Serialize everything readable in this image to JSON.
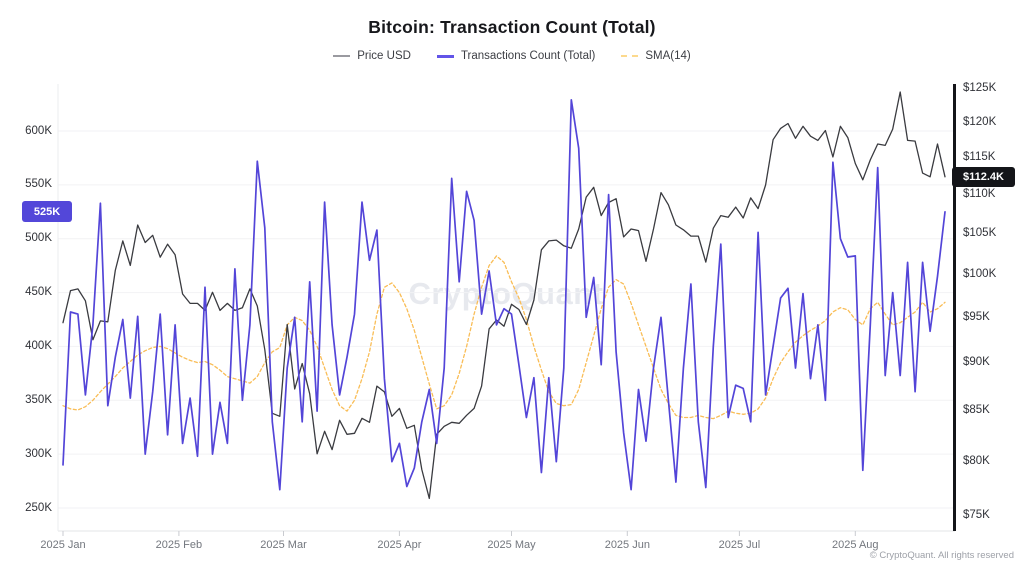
{
  "header": {
    "title": "Bitcoin: Transaction Count (Total)"
  },
  "legend": {
    "items": [
      {
        "label": "Price USD",
        "swatch_color": "#9a9aa0",
        "swatch_style": "solid"
      },
      {
        "label": "Transactions Count (Total)",
        "swatch_color": "#6254e8",
        "swatch_style": "solid"
      },
      {
        "label": "SMA(14)",
        "swatch_color": "#fcd98d",
        "swatch_style": "dashed"
      }
    ]
  },
  "watermark": {
    "text": "CryptoQuant"
  },
  "footer": {
    "copyright": "© CryptoQuant. All rights reserved"
  },
  "chart_data": {
    "type": "line",
    "title": "Bitcoin: Transaction Count (Total)",
    "x_interval_days": 2,
    "axes": {
      "left": {
        "unit": "transactions (K)",
        "scale": "linear",
        "min": 250,
        "max": 600,
        "ticks": [
          {
            "label": "600K",
            "value": 600
          },
          {
            "label": "550K",
            "value": 550
          },
          {
            "label": "500K",
            "value": 500
          },
          {
            "label": "450K",
            "value": 450
          },
          {
            "label": "400K",
            "value": 400
          },
          {
            "label": "350K",
            "value": 350
          },
          {
            "label": "300K",
            "value": 300
          },
          {
            "label": "250K",
            "value": 250
          }
        ],
        "badge": {
          "label": "525K",
          "value": 525,
          "color": "#5347d9"
        }
      },
      "right": {
        "unit": "USD (K)",
        "scale": "log",
        "min": 75,
        "max": 125,
        "ticks": [
          {
            "label": "$125K",
            "value": 125
          },
          {
            "label": "$120K",
            "value": 120
          },
          {
            "label": "$115K",
            "value": 115
          },
          {
            "label": "$110K",
            "value": 110
          },
          {
            "label": "$105K",
            "value": 105
          },
          {
            "label": "$100K",
            "value": 100
          },
          {
            "label": "$95K",
            "value": 95
          },
          {
            "label": "$90K",
            "value": 90
          },
          {
            "label": "$85K",
            "value": 85
          },
          {
            "label": "$80K",
            "value": 80
          },
          {
            "label": "$75K",
            "value": 75
          }
        ],
        "badge": {
          "label": "$112.4K",
          "value": 112.4,
          "color": "#141519"
        }
      },
      "x": {
        "total_days": 236,
        "ticks": [
          {
            "label": "2025 Jan",
            "day": 0
          },
          {
            "label": "2025 Feb",
            "day": 31
          },
          {
            "label": "2025 Mar",
            "day": 59
          },
          {
            "label": "2025 Apr",
            "day": 90
          },
          {
            "label": "2025 May",
            "day": 120
          },
          {
            "label": "2025 Jun",
            "day": 151
          },
          {
            "label": "2025 Jul",
            "day": 181
          },
          {
            "label": "2025 Aug",
            "day": 212
          }
        ]
      }
    },
    "series": [
      {
        "name": "Price USD",
        "axis": "right",
        "color": "#3a3b40",
        "style": "solid",
        "unit": "$K",
        "values": [
          94.4,
          98.1,
          98.3,
          96.9,
          92.5,
          94.6,
          94.5,
          100.5,
          104.1,
          101.1,
          106.1,
          103.9,
          104.8,
          102.1,
          103.7,
          102.4,
          97.7,
          96.6,
          96.6,
          95.8,
          97.9,
          95.8,
          96.6,
          95.8,
          96.1,
          98.3,
          96.3,
          91.4,
          84.7,
          84.4,
          94.2,
          87.2,
          89.9,
          86.7,
          80.7,
          82.9,
          81.1,
          84,
          82.6,
          82.7,
          84.2,
          83.8,
          87.5,
          86.9,
          84.4,
          85.2,
          83.2,
          83.5,
          79.2,
          76.5,
          82.6,
          83.4,
          83.8,
          83.7,
          84.5,
          85.2,
          87.5,
          93.7,
          94.7,
          94,
          96.5,
          95.9,
          94.2,
          97,
          103,
          104.1,
          104.2,
          103.5,
          103.2,
          105.6,
          109.7,
          111,
          107.3,
          109,
          109.5,
          104.6,
          105.6,
          105.4,
          101.6,
          105.6,
          110.3,
          108.7,
          106.1,
          105.5,
          104.7,
          104.7,
          101.5,
          105.7,
          107.3,
          107.1,
          108.4,
          107,
          109.6,
          108.2,
          111.3,
          117.5,
          119.1,
          119.8,
          117.7,
          119.4,
          118,
          117.4,
          118.8,
          115.1,
          119.4,
          117.8,
          114.2,
          112,
          114.7,
          116.9,
          116.7,
          119,
          124.4,
          117.4,
          117.3,
          112.9,
          112.4,
          116.9,
          112.4
        ]
      },
      {
        "name": "Transactions Count (Total)",
        "axis": "left",
        "color": "#5345d8",
        "style": "solid",
        "unit": "K",
        "values": [
          290,
          432,
          430,
          355,
          420,
          533,
          345,
          390,
          425,
          352,
          428,
          300,
          358,
          430,
          318,
          420,
          310,
          352,
          298,
          455,
          300,
          348,
          310,
          472,
          350,
          420,
          572,
          510,
          330,
          267,
          380,
          427,
          330,
          460,
          340,
          534,
          420,
          355,
          390,
          430,
          534,
          480,
          508,
          370,
          293,
          310,
          270,
          287,
          330,
          360,
          310,
          380,
          556,
          460,
          544,
          517,
          430,
          470,
          420,
          435,
          430,
          383,
          334,
          371,
          283,
          371,
          293,
          380,
          629,
          584,
          427,
          464,
          383,
          541,
          395,
          320,
          267,
          360,
          312,
          380,
          427,
          350,
          274,
          380,
          458,
          330,
          269,
          400,
          495,
          334,
          364,
          361,
          330,
          506,
          355,
          400,
          445,
          454,
          380,
          449,
          370,
          420,
          350,
          571,
          500,
          483,
          484,
          285,
          420,
          566,
          373,
          450,
          373,
          478,
          358,
          478,
          414,
          465,
          525
        ]
      },
      {
        "name": "SMA(14)",
        "axis": "left",
        "color": "#f9bd56",
        "style": "dashed",
        "unit": "K",
        "values": [
          345,
          342,
          341,
          344,
          350,
          358,
          365,
          372,
          380,
          386,
          392,
          396,
          399,
          400,
          398,
          394,
          390,
          387,
          385,
          386,
          383,
          378,
          372,
          370,
          368,
          366,
          372,
          385,
          395,
          399,
          420,
          427,
          424,
          415,
          400,
          380,
          360,
          345,
          340,
          350,
          370,
          395,
          430,
          455,
          459,
          450,
          435,
          415,
          390,
          365,
          342,
          345,
          355,
          375,
          400,
          430,
          455,
          475,
          484,
          478,
          460,
          445,
          425,
          400,
          378,
          358,
          347,
          345,
          346,
          360,
          385,
          410,
          435,
          455,
          462,
          458,
          440,
          420,
          400,
          380,
          360,
          347,
          336,
          334,
          334,
          336,
          334,
          333,
          336,
          340,
          338,
          337,
          338,
          342,
          352,
          370,
          385,
          395,
          404,
          410,
          415,
          419,
          424,
          432,
          436,
          434,
          425,
          420,
          435,
          441,
          430,
          420,
          422,
          427,
          432,
          441,
          432,
          435,
          441
        ]
      }
    ]
  }
}
